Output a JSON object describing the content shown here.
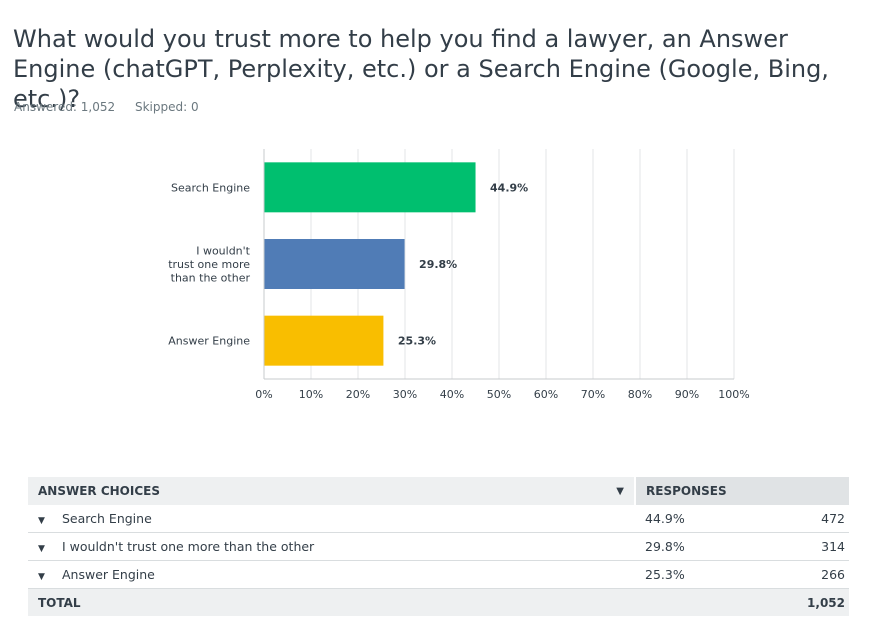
{
  "question": {
    "title": "What would you trust more to help you find a lawyer, an Answer Engine (chatGPT, Perplexity, etc.) or a Search Engine (Google, Bing, etc.)?",
    "answered": "Answered: 1,052",
    "skipped": "Skipped: 0"
  },
  "chart_data": {
    "type": "bar",
    "orientation": "horizontal",
    "categories": [
      "Search Engine",
      "I wouldn't trust one more than the other",
      "Answer Engine"
    ],
    "values": [
      44.9,
      29.8,
      25.3
    ],
    "value_labels": [
      "44.9%",
      "29.8%",
      "25.3%"
    ],
    "colors": [
      "#00bf6f",
      "#507cb6",
      "#f9be00"
    ],
    "xlim": [
      0,
      100
    ],
    "ticks": [
      "0%",
      "10%",
      "20%",
      "30%",
      "40%",
      "50%",
      "60%",
      "70%",
      "80%",
      "90%",
      "100%"
    ],
    "grid": true
  },
  "table": {
    "col_choices": "ANSWER CHOICES",
    "col_responses": "RESPONSES",
    "rows": [
      {
        "label": "Search Engine",
        "pct": "44.9%",
        "count": "472"
      },
      {
        "label": "I wouldn't trust one more than the other",
        "pct": "29.8%",
        "count": "314"
      },
      {
        "label": "Answer Engine",
        "pct": "25.3%",
        "count": "266"
      }
    ],
    "total_label": "TOTAL",
    "total_count": "1,052"
  }
}
